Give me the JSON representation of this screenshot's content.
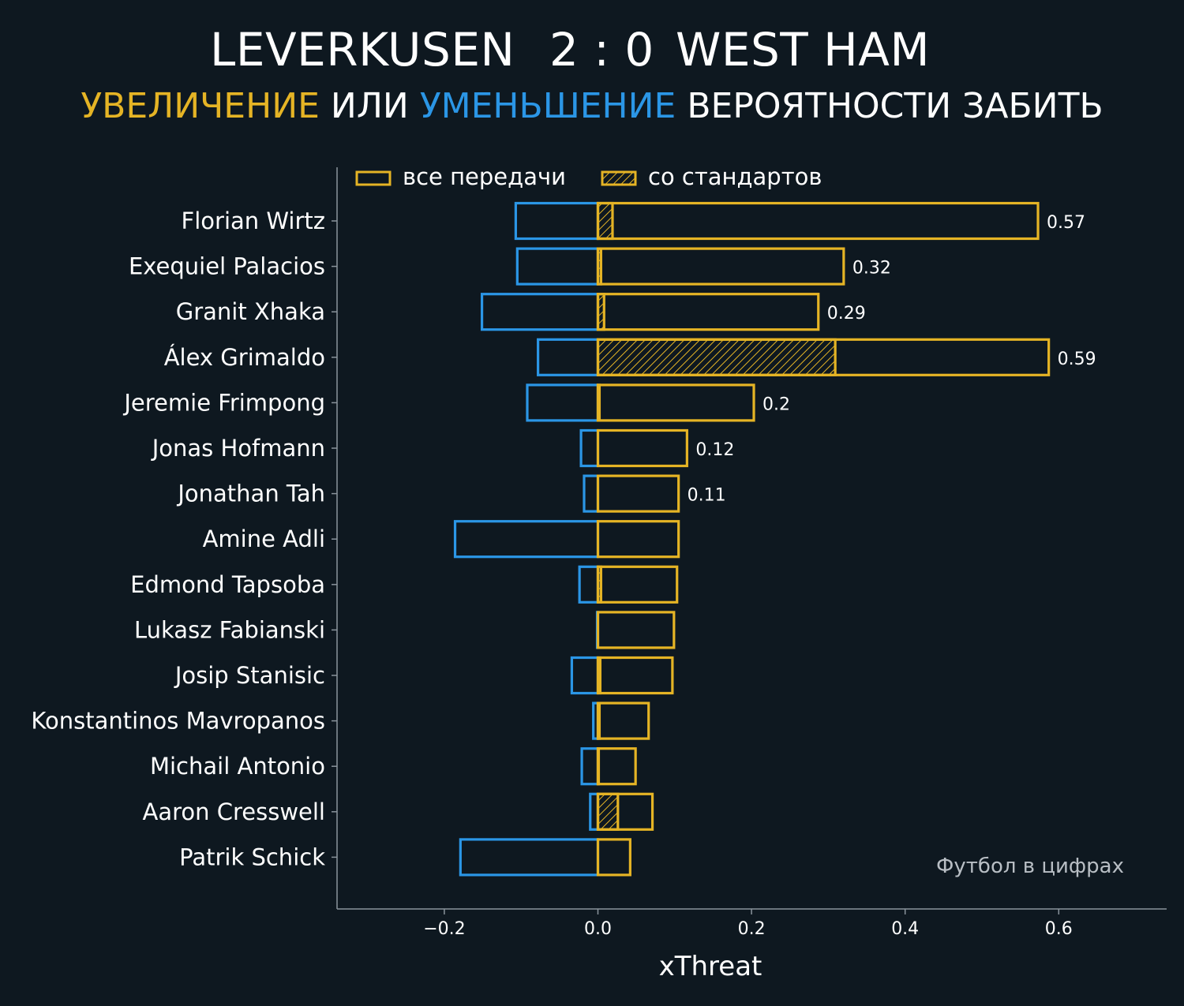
{
  "header": {
    "home_team": "LEVERKUSEN",
    "score": "2 : 0",
    "away_team": "WEST HAM",
    "subtitle_increase": "УВЕЛИЧЕНИЕ",
    "subtitle_or": "ИЛИ",
    "subtitle_decrease": "УМЕНЬШЕНИЕ",
    "subtitle_rest": "ВЕРОЯТНОСТИ ЗАБИТЬ"
  },
  "colors": {
    "background": "#0e1820",
    "increase": "#e5b425",
    "decrease": "#2b96e6",
    "axis": "#8a949c"
  },
  "credit": "Футбол в цифрах",
  "chart_data": {
    "type": "bar",
    "orientation": "horizontal",
    "xlabel": "xThreat",
    "xlim": [
      -0.34,
      0.74
    ],
    "xticks": [
      -0.2,
      0.0,
      0.2,
      0.4,
      0.6
    ],
    "xtick_labels": [
      "−0.2",
      "0.0",
      "0.2",
      "0.4",
      "0.6"
    ],
    "legend": {
      "placement": "top",
      "all_passes": "все передачи",
      "set_pieces": "со стандартов"
    },
    "grid": false,
    "categories": [
      "Florian Wirtz",
      "Exequiel Palacios",
      "Granit Xhaka",
      "Álex Grimaldo",
      "Jeremie Frimpong",
      "Jonas Hofmann",
      "Jonathan Tah",
      "Amine Adli",
      "Edmond Tapsoba",
      "Lukasz Fabianski",
      "Josip Stanisic",
      "Konstantinos Mavropanos",
      "Michail Antonio",
      "Aaron Cresswell",
      "Patrik Schick"
    ],
    "series": [
      {
        "key": "increase",
        "values": [
          0.573,
          0.32,
          0.287,
          0.587,
          0.203,
          0.116,
          0.105,
          0.105,
          0.103,
          0.099,
          0.097,
          0.066,
          0.049,
          0.071,
          0.042
        ]
      },
      {
        "key": "set_piece_increase",
        "values": [
          0.019,
          0.004,
          0.008,
          0.309,
          0.002,
          0.0,
          0.0,
          0.0,
          0.004,
          0.0,
          0.003,
          0.002,
          0.001,
          0.026,
          0.0
        ]
      },
      {
        "key": "decrease",
        "values": [
          -0.107,
          -0.105,
          -0.151,
          -0.078,
          -0.092,
          -0.022,
          -0.018,
          -0.186,
          -0.024,
          -0.001,
          -0.034,
          -0.006,
          -0.021,
          -0.01,
          -0.179
        ]
      }
    ],
    "value_labels": [
      "0.57",
      "0.32",
      "0.29",
      "0.59",
      "0.2",
      "0.12",
      "0.11",
      "",
      "",
      "",
      "",
      "",
      "",
      "",
      ""
    ]
  }
}
